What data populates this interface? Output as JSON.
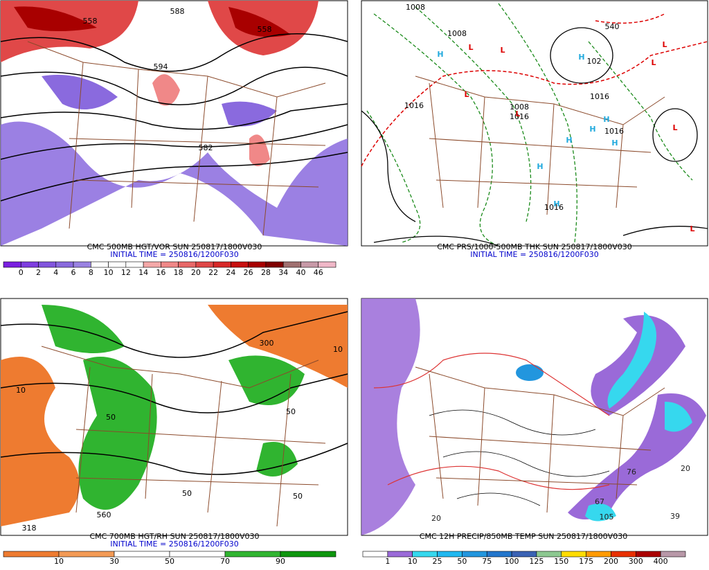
{
  "panels": [
    {
      "caption": "CMC 500MB HGT/VOR SUN 250817/1800V030",
      "initial_time": "INITIAL TIME = 250816/1200F030",
      "colorbar": {
        "labels": [
          "0",
          "2",
          "4",
          "6",
          "8",
          "10",
          "12",
          "14",
          "16",
          "18",
          "20",
          "22",
          "24",
          "26",
          "28",
          "34",
          "40",
          "46"
        ],
        "colors": [
          "#7a1fe0",
          "#7e3ee0",
          "#8255de",
          "#8a6ade",
          "#9a82e2",
          "#ffffff",
          "#ffffff",
          "#ffffff",
          "#f4a8a8",
          "#f08888",
          "#e86868",
          "#e04848",
          "#d82828",
          "#c81010",
          "#a80000",
          "#800000",
          "#a07070",
          "#c89aa8",
          "#f0b8c8"
        ]
      },
      "map_labels": [
        "558",
        "558",
        "588",
        "582",
        "594"
      ]
    },
    {
      "caption": "CMC PRS/1000-500MB THK SUN 250817/1800V030",
      "initial_time": "INITIAL TIME = 250816/1200F030",
      "centers": {
        "high": "H",
        "low": "L"
      },
      "map_labels": [
        "1008",
        "1008",
        "1016",
        "1008",
        "1016",
        "1016",
        "1016",
        "1016",
        "102",
        "540"
      ]
    },
    {
      "caption": "CMC 700MB HGT/RH SUN 250817/1800V030",
      "initial_time": "INITIAL TIME = 250816/1200F030",
      "colorbar": {
        "labels": [
          "10",
          "30",
          "50",
          "70",
          "90"
        ],
        "colors": [
          "#ee7b30",
          "#f39a55",
          "#ffffff",
          "#ffffff",
          "#30b430",
          "#0e960e"
        ]
      },
      "map_labels": [
        "318",
        "300",
        "560",
        "50",
        "50",
        "50",
        "50",
        "10",
        "10"
      ]
    },
    {
      "caption": "CMC 12H PRECIP/850MB TEMP SUN 250817/1800V030",
      "colorbar": {
        "labels": [
          "1",
          "10",
          "25",
          "50",
          "75",
          "100",
          "125",
          "150",
          "175",
          "200",
          "300",
          "400"
        ],
        "colors": [
          "#ffffff",
          "#9a6ad8",
          "#36d8ee",
          "#20b8f0",
          "#2296de",
          "#2276cc",
          "#3a62b4",
          "#8cc890",
          "#ffdc00",
          "#ff9a00",
          "#e83000",
          "#aa0000",
          "#b898a8"
        ]
      },
      "map_labels": [
        "105",
        "76",
        "67",
        "39",
        "20",
        "20"
      ]
    }
  ]
}
